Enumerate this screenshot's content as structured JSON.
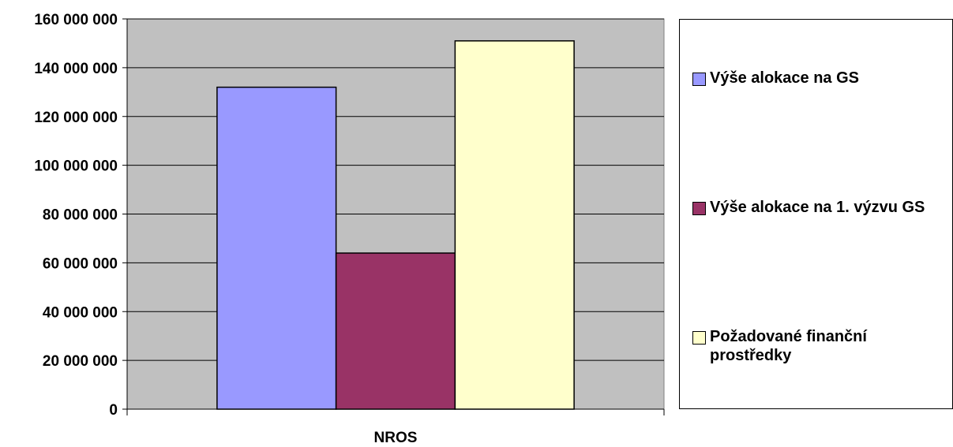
{
  "chart_data": {
    "type": "bar",
    "categories": [
      "NROS"
    ],
    "series": [
      {
        "name": "Výše alokace na GS",
        "values": [
          132000000
        ],
        "color": "#9999ff"
      },
      {
        "name": "Výše alokace na 1. výzvu GS",
        "values": [
          64000000
        ],
        "color": "#993366"
      },
      {
        "name": "Požadované finanční prostředky",
        "values": [
          151000000
        ],
        "color": "#ffffcc"
      }
    ],
    "y_ticks": [
      "0",
      "20 000 000",
      "40 000 000",
      "60 000 000",
      "80 000 000",
      "100 000 000",
      "120 000 000",
      "140 000 000",
      "160 000 000"
    ],
    "ylim": [
      0,
      160000000
    ],
    "grid": true,
    "plot_background": "#c0c0c0",
    "legend_position": "right"
  }
}
